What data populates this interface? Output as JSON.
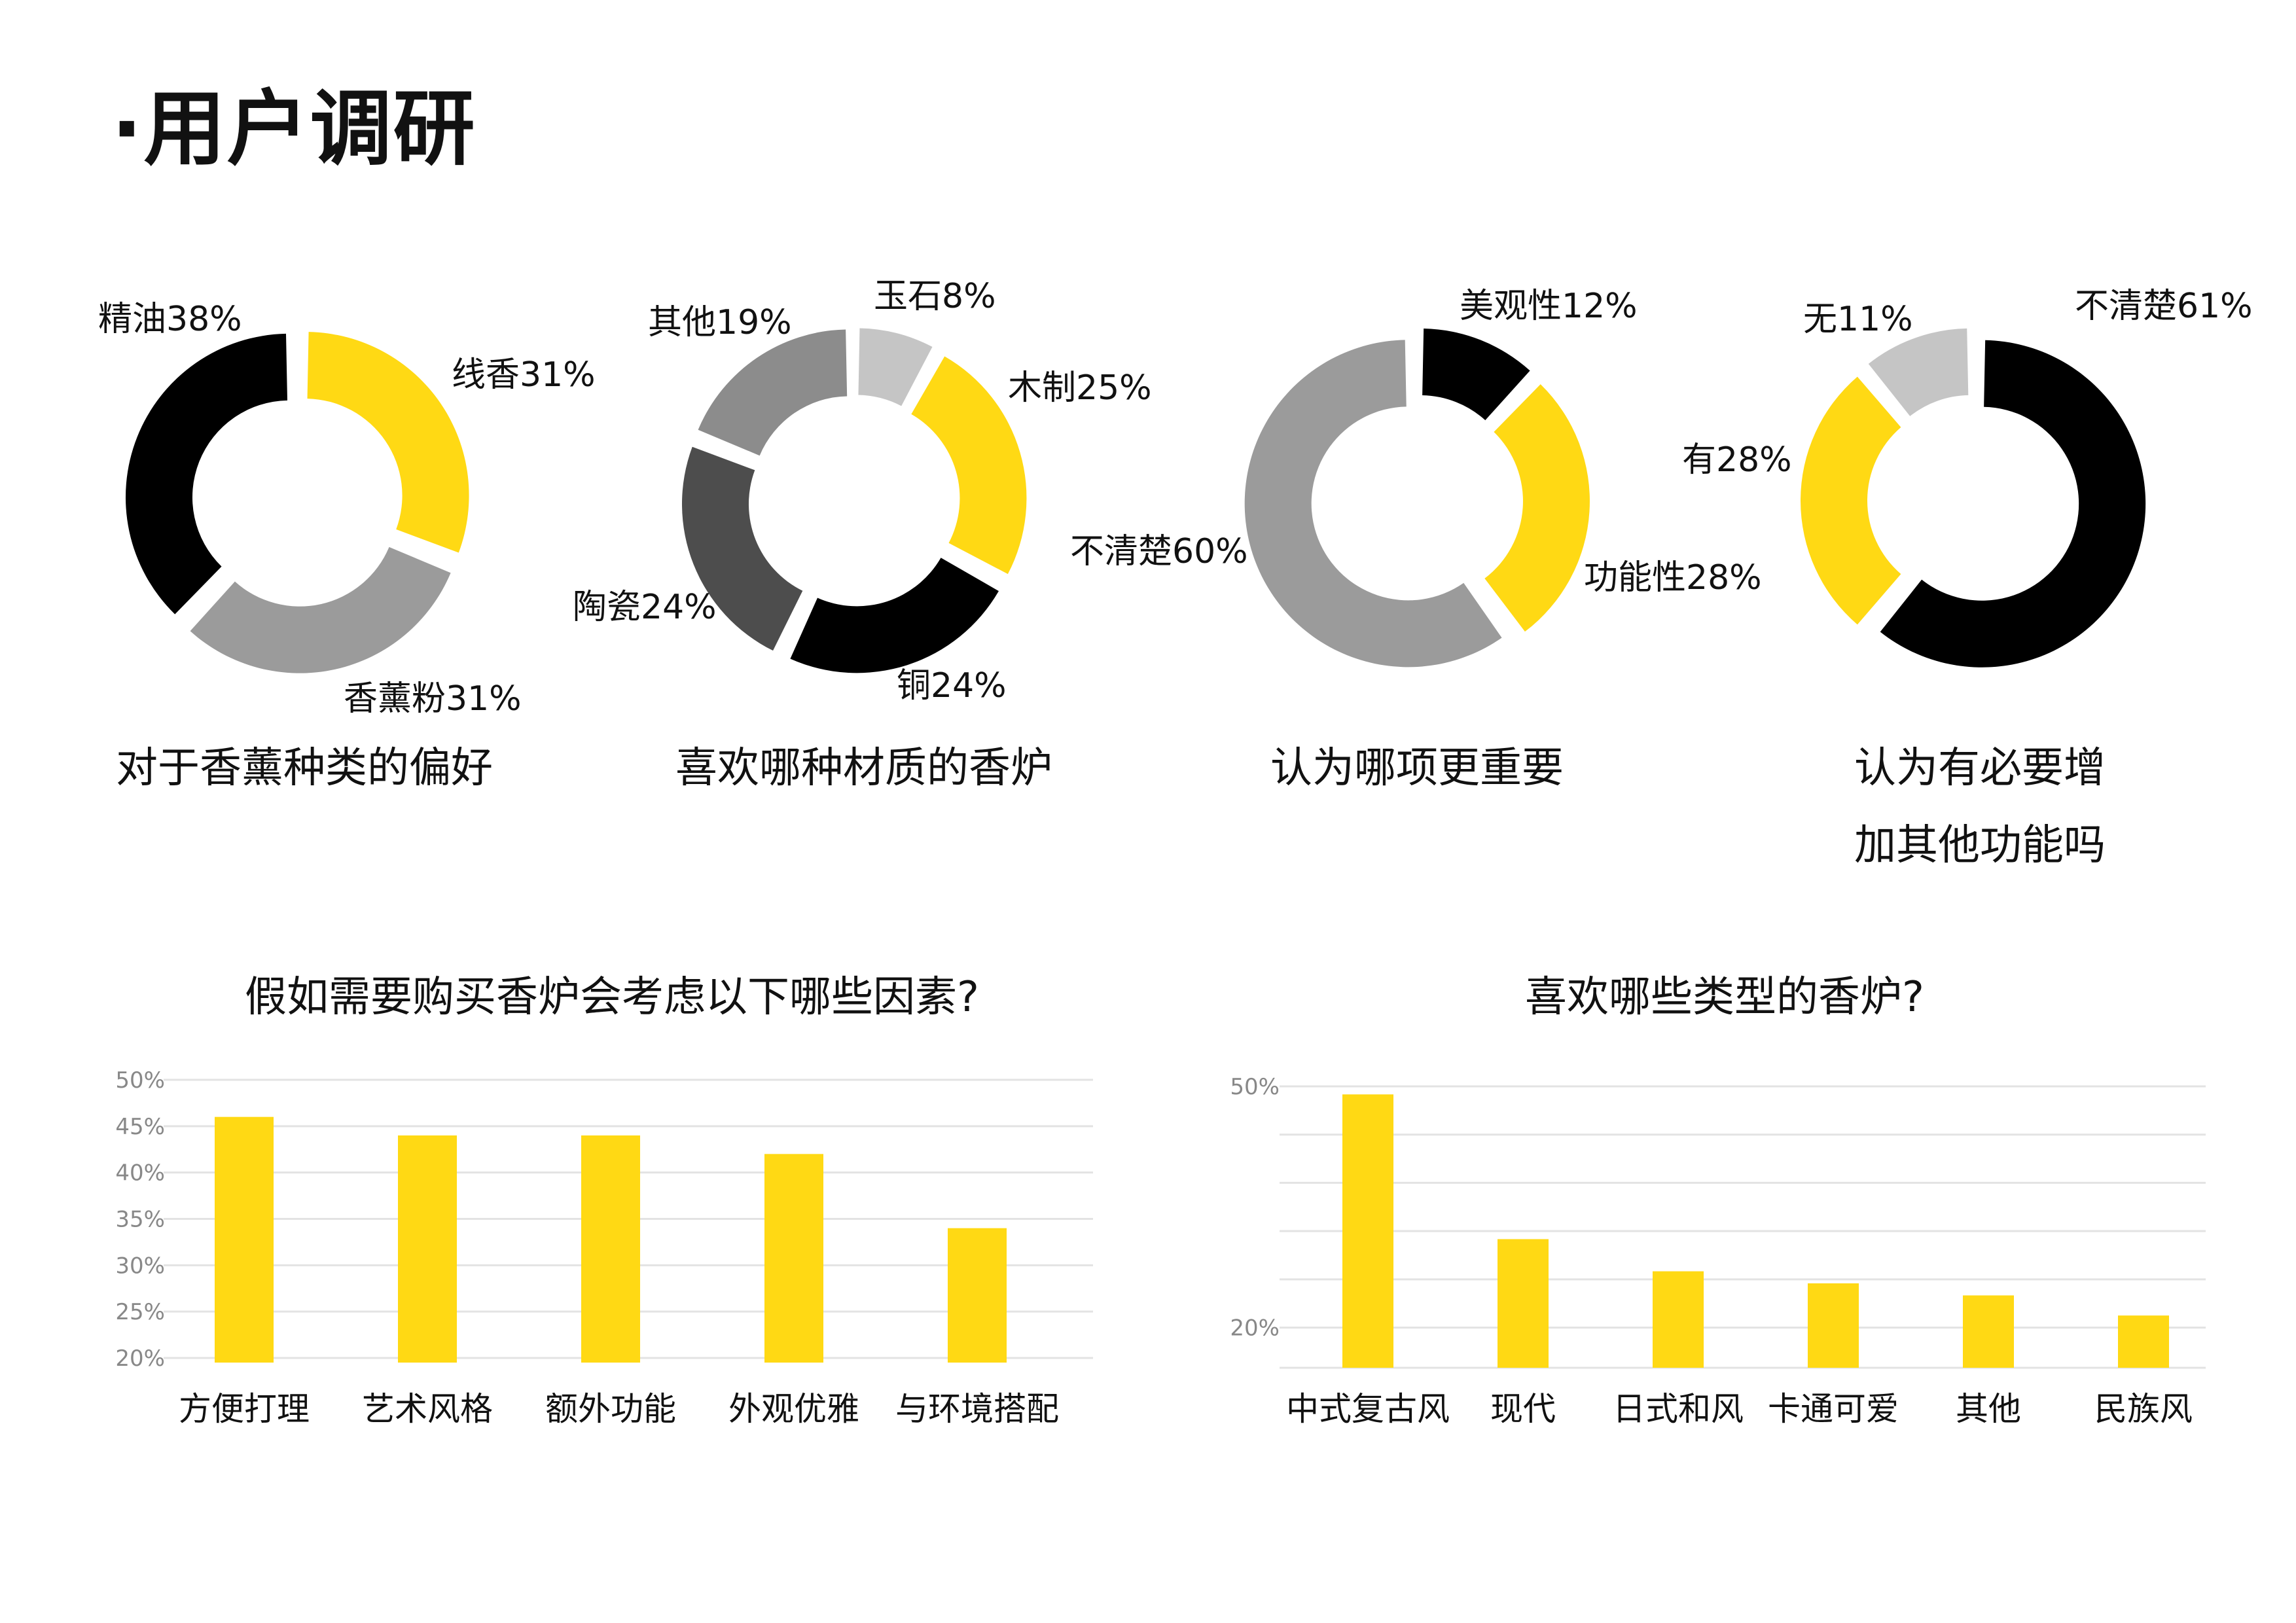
{
  "page": {
    "title": "·用户调研"
  },
  "colors": {
    "yellow": "#FFD914",
    "black": "#000000",
    "gray": "#9B9B9B",
    "light_gray": "#C5C5C5",
    "dark_gray": "#4D4D4D",
    "mid_gray": "#8C8C8C",
    "grid": "#E3E3E3"
  },
  "chart_data": [
    {
      "type": "pie",
      "title": "对于香薰种类的偏好",
      "slices": [
        {
          "label": "线香31%",
          "value": 31,
          "color": "#FFD914"
        },
        {
          "label": "香薰粉31%",
          "value": 31,
          "color": "#9B9B9B"
        },
        {
          "label": "精油38%",
          "value": 38,
          "color": "#000000"
        }
      ]
    },
    {
      "type": "pie",
      "title": "喜欢哪种材质的香炉",
      "slices": [
        {
          "label": "玉石8%",
          "value": 8,
          "color": "#C5C5C5"
        },
        {
          "label": "木制25%",
          "value": 25,
          "color": "#FFD914"
        },
        {
          "label": "铜24%",
          "value": 24,
          "color": "#000000"
        },
        {
          "label": "陶瓷24%",
          "value": 24,
          "color": "#4D4D4D"
        },
        {
          "label": "其他19%",
          "value": 19,
          "color": "#8C8C8C"
        }
      ]
    },
    {
      "type": "pie",
      "title": "认为哪项更重要",
      "slices": [
        {
          "label": "美观性12%",
          "value": 12,
          "color": "#000000"
        },
        {
          "label": "功能性28%",
          "value": 28,
          "color": "#FFD914"
        },
        {
          "label": "不清楚60%",
          "value": 60,
          "color": "#9B9B9B"
        }
      ]
    },
    {
      "type": "pie",
      "title": "认为有必要增加其他功能吗",
      "title_lines": [
        "认为有必要增",
        "加其他功能吗"
      ],
      "slices": [
        {
          "label": "不清楚61%",
          "value": 61,
          "color": "#000000"
        },
        {
          "label": "有28%",
          "value": 28,
          "color": "#FFD914"
        },
        {
          "label": "无11%",
          "value": 11,
          "color": "#C5C5C5"
        }
      ]
    },
    {
      "type": "bar",
      "title": "假如需要购买香炉会考虑以下哪些因素?",
      "categories": [
        "方便打理",
        "艺术风格",
        "额外功能",
        "外观优雅",
        "与环境搭配"
      ],
      "values": [
        46,
        44,
        44,
        42,
        34
      ],
      "ylim": [
        20,
        50
      ],
      "yticks": [
        20,
        25,
        30,
        35,
        40,
        45,
        50
      ],
      "ytick_labels": [
        "20%",
        "25%",
        "30%",
        "35%",
        "40%",
        "45%",
        "50%"
      ],
      "grid": true
    },
    {
      "type": "bar",
      "title": "喜欢哪些类型的香炉?",
      "categories": [
        "中式复古风",
        "现代",
        "日式和风",
        "卡通可爱",
        "其他",
        "民族风"
      ],
      "values": [
        49,
        31,
        27,
        25.5,
        24,
        21.5
      ],
      "ylim": [
        15,
        50
      ],
      "yticks": [
        20,
        50
      ],
      "ytick_labels": [
        "20%",
        "50%"
      ],
      "grid": true
    }
  ]
}
